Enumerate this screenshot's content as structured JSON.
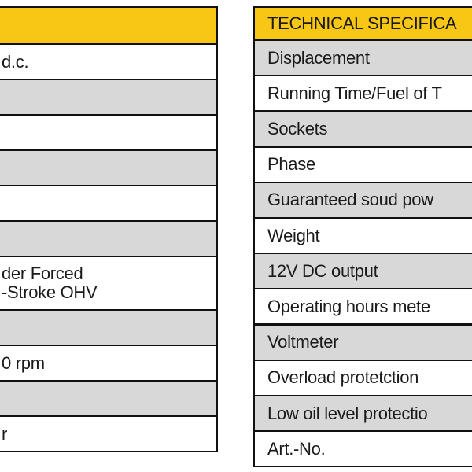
{
  "left_table": {
    "rows": [
      [
        "d.c."
      ],
      null,
      null,
      null,
      null,
      null,
      [
        "der Forced",
        "-Stroke OHV"
      ],
      null,
      [
        "0 rpm"
      ],
      null,
      [
        "r"
      ]
    ]
  },
  "right_table": {
    "header": "TECHNICAL SPECIFICA",
    "rows": [
      "Displacement",
      "Running Time/Fuel of T",
      "Sockets",
      "Phase",
      "Guaranteed soud pow",
      "Weight",
      "12V DC output",
      "Operating hours mete",
      "Voltmeter",
      "Overload protetction",
      "Low oil level protectio",
      "Art.-No."
    ]
  }
}
